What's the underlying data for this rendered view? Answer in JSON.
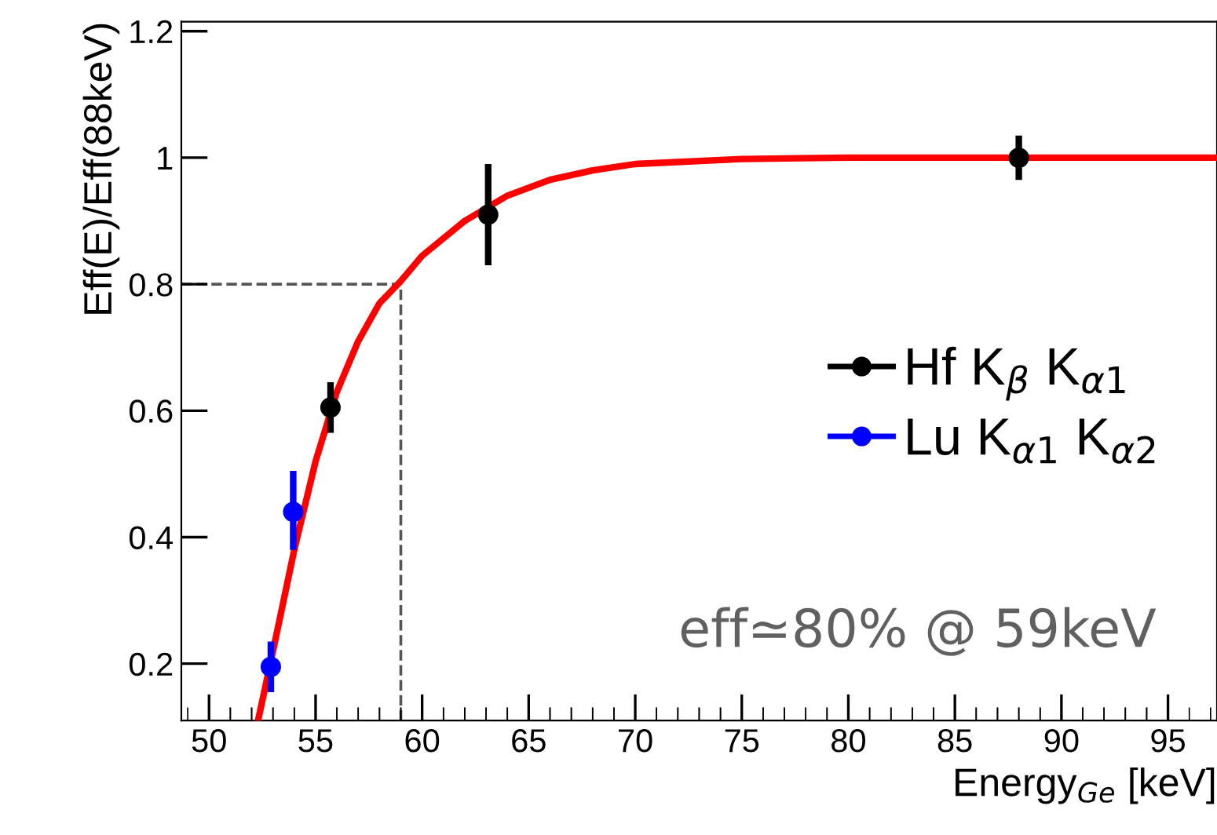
{
  "chart_data": {
    "type": "scatter",
    "xlabel": "Energy$_{Ge}$ [keV]",
    "ylabel": "Eff(E)/Eff(88keV)",
    "xlim": [
      48.7,
      97.3
    ],
    "ylim": [
      0.11,
      1.215
    ],
    "xticks": [
      50,
      55,
      60,
      65,
      70,
      75,
      80,
      85,
      90,
      95
    ],
    "yticks": [
      {
        "value": 0.2,
        "label": "0.2"
      },
      {
        "value": 0.4,
        "label": "0.4"
      },
      {
        "value": 0.6,
        "label": "0.6"
      },
      {
        "value": 0.8,
        "label": "0.8"
      },
      {
        "value": 1,
        "label": "1"
      },
      {
        "value": 1.2,
        "label": "1.2"
      }
    ],
    "marker": "circle",
    "legend": "right",
    "grid": false,
    "series": [
      {
        "name": "Hf K$_{β}$ K$_{α1}$",
        "color": "#000000",
        "x": [
          55.7,
          63.1,
          88.0
        ],
        "values": [
          0.605,
          0.91,
          1.0
        ],
        "errors": [
          0.04,
          0.08,
          0.035
        ]
      },
      {
        "name": "Lu K$_{α1}$ K$_{α2}$",
        "color": "#0000ff",
        "x": [
          52.9,
          53.95
        ],
        "values": [
          0.195,
          0.44
        ],
        "errors": [
          0.04,
          [
            0.38,
            0.505
          ]
        ]
      },
      {
        "type": "line",
        "color": "#ff0000",
        "marker": "none",
        "x": [
          52.3,
          53,
          54,
          55,
          56,
          57,
          58,
          59,
          60,
          62,
          64,
          66,
          68,
          70,
          75,
          80,
          97.3
        ],
        "values": [
          0.11,
          0.22,
          0.38,
          0.52,
          0.63,
          0.71,
          0.77,
          0.805,
          0.845,
          0.9,
          0.94,
          0.965,
          0.98,
          0.99,
          0.998,
          1.0,
          1.0
        ]
      }
    ],
    "ref_lines": [
      {
        "axis": "y",
        "value": 0.8,
        "color": "#555555",
        "line_style": "dashed"
      },
      {
        "axis": "x",
        "value": 59,
        "color": "#555555",
        "line_style": "dashed"
      }
    ],
    "annotations": [
      "eff≃80% @ 59keV"
    ]
  }
}
